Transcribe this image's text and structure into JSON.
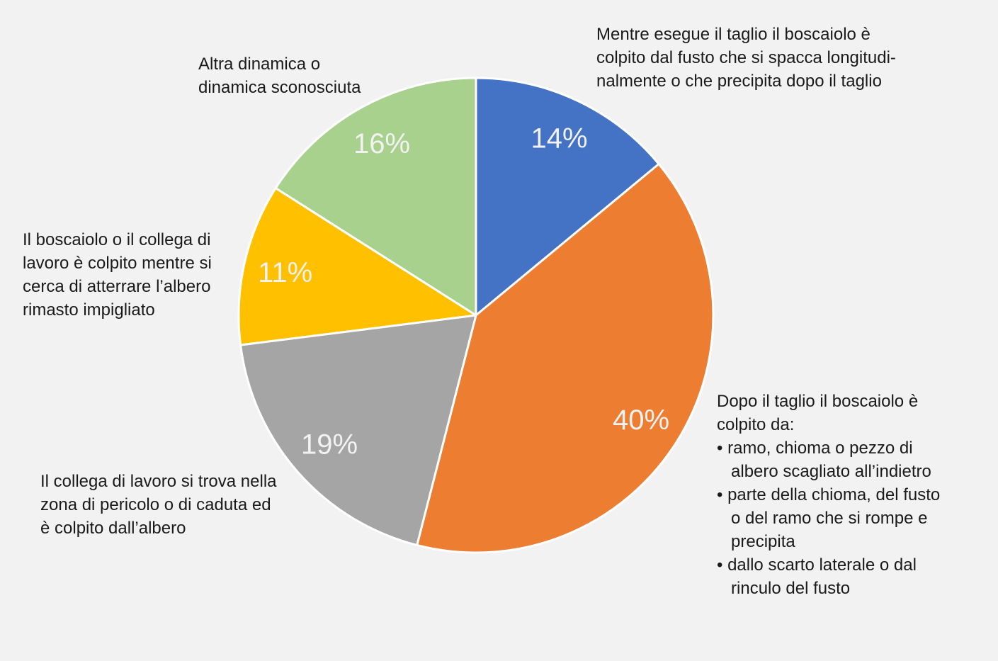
{
  "background_color": "#F2F2F2",
  "chart_data": {
    "type": "pie",
    "title": "",
    "unit": "%",
    "total": 100,
    "start_angle_deg": 0,
    "direction": "clockwise",
    "legend": "none",
    "data_label_color": "#F2F2F2",
    "slice_border_color": "#FFFFFF",
    "slices": [
      {
        "key": "blue",
        "value": 14,
        "percent_label": "14%",
        "color": "#4472C4",
        "label": "Mentre esegue il taglio il boscaiolo è colpito dal fusto che si spacca longitudinalmente o che precipita dopo il taglio"
      },
      {
        "key": "orange",
        "value": 40,
        "percent_label": "40%",
        "color": "#ED7D31",
        "label": "Dopo il taglio il boscaiolo è colpito da: ramo, chioma o pezzo di albero scagliato all’indietro; parte della chioma, del fusto o del ramo che si rompe e precipita; dallo scarto laterale o dal rinculo del fusto"
      },
      {
        "key": "gray",
        "value": 19,
        "percent_label": "19%",
        "color": "#A5A5A5",
        "label": "Il collega di lavoro si trova nella zona di pericolo o di caduta ed è colpito dall’albero"
      },
      {
        "key": "yellow",
        "value": 11,
        "percent_label": "11%",
        "color": "#FFC000",
        "label": "Il boscaiolo o il collega di lavoro è colpito mentre si cerca di atterrare l’albero rimasto impigliato"
      },
      {
        "key": "green",
        "value": 16,
        "percent_label": "16%",
        "color": "#A9D18E",
        "label": "Altra dinamica o dinamica sconosciuta"
      }
    ]
  },
  "annotations": {
    "blue": {
      "text": "Mentre esegue il taglio il boscaiolo è\ncolpito dal fusto che si spacca longitudi-\nnalmente o che precipita dopo il taglio"
    },
    "green": {
      "text": "Altra dinamica o\ndinamica sconosciuta"
    },
    "yellow": {
      "text": "Il boscaiolo o il collega di\nlavoro è colpito mentre si\ncerca di atterrare l’albero\nrimasto impigliato"
    },
    "gray": {
      "text": "Il collega di lavoro si trova nella\nzona di pericolo o di caduta ed\nè colpito dall’albero"
    },
    "orange": {
      "text": "Dopo il taglio il boscaiolo è\ncolpito da:\n• ramo, chioma o pezzo di\n   albero scagliato all’indietro\n• parte della chioma, del fusto\n   o del ramo che si rompe e\n   precipita\n• dallo scarto laterale o dal\n   rinculo del fusto"
    }
  }
}
